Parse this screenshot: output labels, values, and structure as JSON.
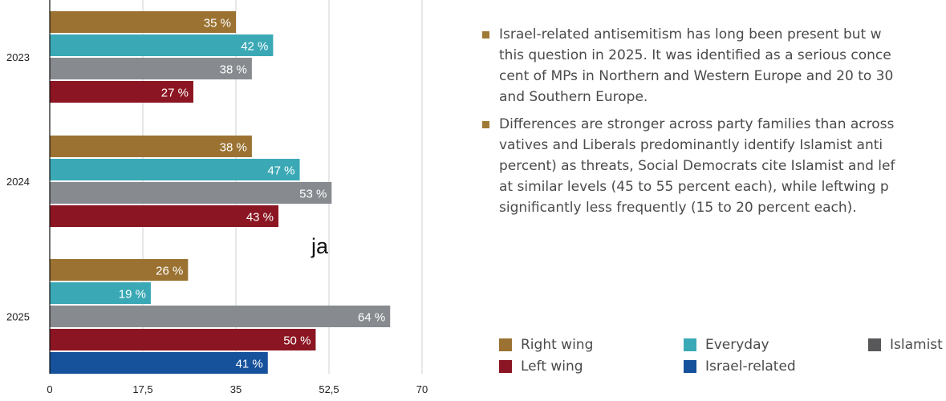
{
  "chart_data": {
    "type": "bar",
    "orientation": "horizontal",
    "categories": [
      "2023",
      "2024",
      "2025"
    ],
    "series": [
      {
        "name": "Right wing",
        "color": "#9b7232",
        "values": [
          35,
          38,
          26
        ]
      },
      {
        "name": "Everyday",
        "color": "#3aa9b5",
        "values": [
          42,
          47,
          19
        ]
      },
      {
        "name": "Islamist",
        "color": "#878b8f",
        "values": [
          38,
          53,
          64
        ]
      },
      {
        "name": "Left wing",
        "color": "#8b1522",
        "values": [
          27,
          43,
          50
        ]
      },
      {
        "name": "Israel-related",
        "color": "#16519b",
        "values": [
          null,
          null,
          41
        ]
      }
    ],
    "x_ticks": [
      "0",
      "17,5",
      "35",
      "52,5",
      "70"
    ],
    "xlim": [
      0,
      70
    ],
    "value_suffix": " %",
    "grid": true,
    "legend_position": "bottom-right"
  },
  "annotation": "ja",
  "bullets": [
    {
      "lines": [
        "Israel-related antisemitism has long been present but w",
        "this question in 2025. It was identified as a serious conce",
        "cent of MPs in Northern and Western Europe and 20 to 30",
        "and Southern Europe."
      ]
    },
    {
      "lines": [
        "Differences are stronger across party families than across",
        "vatives and Liberals predominantly identify Islamist anti",
        "percent) as threats, Social Democrats cite Islamist and lef",
        "at similar levels (45 to 55 percent each), while leftwing p",
        "significantly less frequently (15 to 20 percent each)."
      ]
    }
  ],
  "legend": [
    {
      "label": "Right wing",
      "color": "#9b7232"
    },
    {
      "label": "Everyday",
      "color": "#3aa9b5"
    },
    {
      "label": "Islamist",
      "color": "#58585a"
    },
    {
      "label": "Left wing",
      "color": "#8b1522"
    },
    {
      "label": "Israel-related",
      "color": "#16519b"
    }
  ]
}
